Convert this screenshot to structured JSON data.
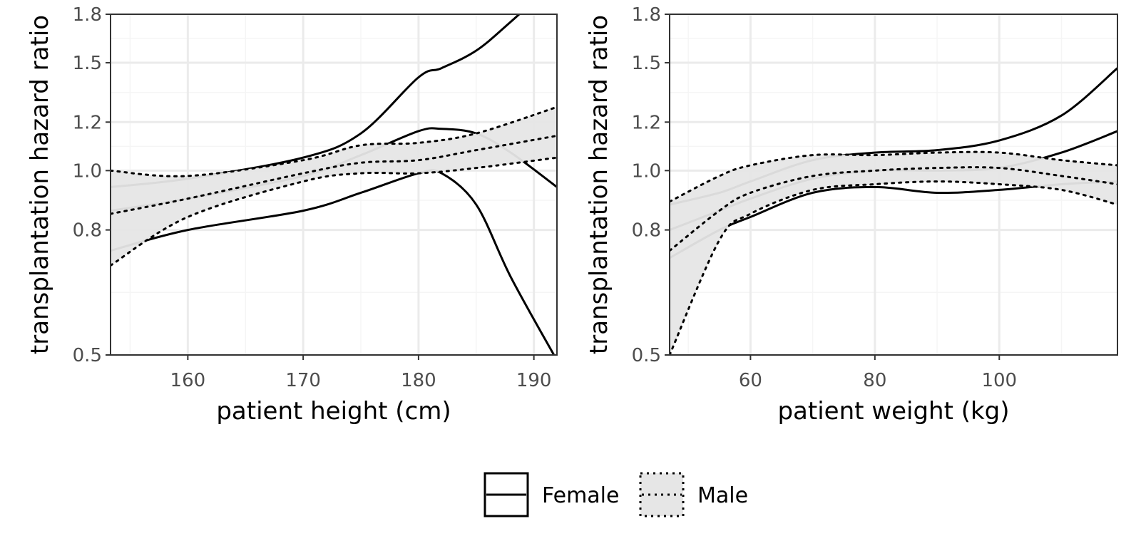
{
  "legend": {
    "female_label": "Female",
    "male_label": "Male",
    "placement": "bottom"
  },
  "colors": {
    "band_fill": "#e6e6e6",
    "grid_major": "#ebebeb",
    "grid_minor": "#f5f5f5",
    "line": "#000000",
    "panel_border": "#333333",
    "tick_text": "#4d4d4d"
  },
  "chart_data": [
    {
      "type": "line",
      "scale_y": "log",
      "grid": true,
      "xlabel": "patient height (cm)",
      "ylabel": "transplantation hazard ratio",
      "xlim": [
        153.3,
        192.0
      ],
      "ylim": [
        0.5,
        1.8
      ],
      "x_ticks": [
        160,
        170,
        180,
        190
      ],
      "y_ticks": [
        0.5,
        0.8,
        1.0,
        1.2,
        1.5,
        1.8
      ],
      "y_tick_labels": [
        "0.5",
        "0.8",
        "1.0",
        "1.2",
        "1.5",
        "1.8"
      ],
      "series": [
        {
          "name": "Female",
          "linestyle": "solid",
          "x": [
            153.3,
            160,
            170,
            175,
            180,
            182,
            185,
            188,
            192
          ],
          "estimate": [
            0.86,
            0.9,
            0.98,
            1.06,
            1.16,
            1.17,
            1.15,
            1.07,
            0.94
          ],
          "lower": [
            0.74,
            0.8,
            0.86,
            0.92,
            0.99,
            0.99,
            0.88,
            0.67,
            0.49
          ],
          "upper": [
            0.94,
            0.97,
            1.05,
            1.15,
            1.42,
            1.47,
            1.57,
            1.75,
            2.05
          ]
        },
        {
          "name": "Male",
          "linestyle": "dotted",
          "x": [
            153.3,
            160,
            170,
            175,
            180,
            185,
            192
          ],
          "estimate": [
            0.85,
            0.9,
            0.99,
            1.03,
            1.04,
            1.08,
            1.14
          ],
          "lower": [
            0.7,
            0.84,
            0.96,
            0.99,
            0.99,
            1.01,
            1.05
          ],
          "upper": [
            1.0,
            0.98,
            1.04,
            1.1,
            1.11,
            1.15,
            1.27
          ]
        }
      ]
    },
    {
      "type": "line",
      "scale_y": "log",
      "grid": true,
      "xlabel": "patient weight (kg)",
      "ylabel": "transplantation hazard ratio",
      "xlim": [
        47.0,
        119.0
      ],
      "ylim": [
        0.5,
        1.8
      ],
      "x_ticks": [
        60,
        80,
        100
      ],
      "y_ticks": [
        0.5,
        0.8,
        1.0,
        1.2,
        1.5,
        1.8
      ],
      "y_tick_labels": [
        "0.5",
        "0.8",
        "1.0",
        "1.2",
        "1.5",
        "1.8"
      ],
      "series": [
        {
          "name": "Female",
          "linestyle": "solid",
          "x": [
            47,
            55,
            60,
            70,
            80,
            90,
            100,
            110,
            119
          ],
          "estimate": [
            0.8,
            0.86,
            0.9,
            0.97,
            1.0,
            1.0,
            1.01,
            1.07,
            1.16
          ],
          "lower": [
            0.72,
            0.8,
            0.84,
            0.92,
            0.94,
            0.92,
            0.93,
            0.95,
            0.96
          ],
          "upper": [
            0.88,
            0.92,
            0.96,
            1.04,
            1.07,
            1.08,
            1.12,
            1.23,
            1.47
          ]
        },
        {
          "name": "Male",
          "linestyle": "dotted",
          "x": [
            47,
            55,
            60,
            70,
            80,
            90,
            100,
            110,
            119
          ],
          "estimate": [
            0.74,
            0.86,
            0.92,
            0.98,
            1.0,
            1.01,
            1.01,
            0.98,
            0.95
          ],
          "lower": [
            0.5,
            0.77,
            0.85,
            0.93,
            0.95,
            0.96,
            0.95,
            0.93,
            0.88
          ],
          "upper": [
            0.89,
            0.98,
            1.02,
            1.06,
            1.06,
            1.07,
            1.07,
            1.04,
            1.02
          ]
        }
      ]
    }
  ]
}
